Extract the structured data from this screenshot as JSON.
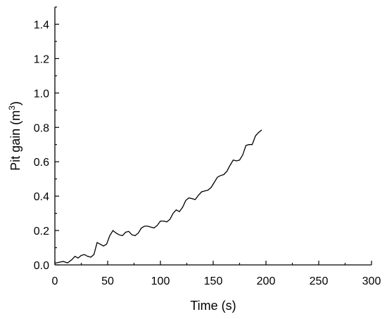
{
  "chart_data": {
    "type": "line",
    "title": "",
    "xlabel": "Time (s)",
    "ylabel_main": "Pit gain (m",
    "ylabel_sup": "3",
    "ylabel_tail": ")",
    "xlim": [
      0,
      300
    ],
    "ylim": [
      0,
      1.5
    ],
    "x_ticks": [
      0,
      50,
      100,
      150,
      200,
      250,
      300
    ],
    "x_tick_labels": [
      "0",
      "50",
      "100",
      "150",
      "200",
      "250",
      "300"
    ],
    "y_ticks": [
      0,
      0.2,
      0.4,
      0.6,
      0.8,
      1.0,
      1.2,
      1.4
    ],
    "y_tick_labels": [
      "0.0",
      "0.2",
      "0.4",
      "0.6",
      "0.8",
      "1.0",
      "1.2",
      "1.4"
    ],
    "grid": false,
    "legend": "none",
    "series": [
      {
        "x": [
          0,
          4,
          8,
          12,
          16,
          19,
          22,
          25,
          28,
          31,
          34,
          37,
          40,
          43,
          46,
          49,
          52,
          55,
          58,
          61,
          64,
          67,
          70,
          73,
          76,
          79,
          82,
          85,
          88,
          91,
          94,
          97,
          100,
          103,
          106,
          109,
          112,
          115,
          118,
          121,
          124,
          127,
          130,
          133,
          136,
          139,
          142,
          145,
          148,
          151,
          154,
          157,
          160,
          163,
          166,
          169,
          172,
          175,
          178,
          181,
          184,
          187,
          190,
          193,
          196
        ],
        "y": [
          0.01,
          0.015,
          0.02,
          0.012,
          0.03,
          0.05,
          0.04,
          0.055,
          0.06,
          0.05,
          0.045,
          0.06,
          0.13,
          0.12,
          0.11,
          0.12,
          0.17,
          0.2,
          0.185,
          0.175,
          0.17,
          0.19,
          0.195,
          0.175,
          0.17,
          0.185,
          0.215,
          0.225,
          0.225,
          0.22,
          0.215,
          0.23,
          0.255,
          0.255,
          0.25,
          0.265,
          0.3,
          0.32,
          0.31,
          0.335,
          0.375,
          0.39,
          0.385,
          0.38,
          0.405,
          0.425,
          0.43,
          0.435,
          0.45,
          0.48,
          0.51,
          0.52,
          0.525,
          0.545,
          0.58,
          0.61,
          0.605,
          0.61,
          0.64,
          0.695,
          0.7,
          0.7,
          0.75,
          0.77,
          0.785
        ]
      }
    ]
  }
}
